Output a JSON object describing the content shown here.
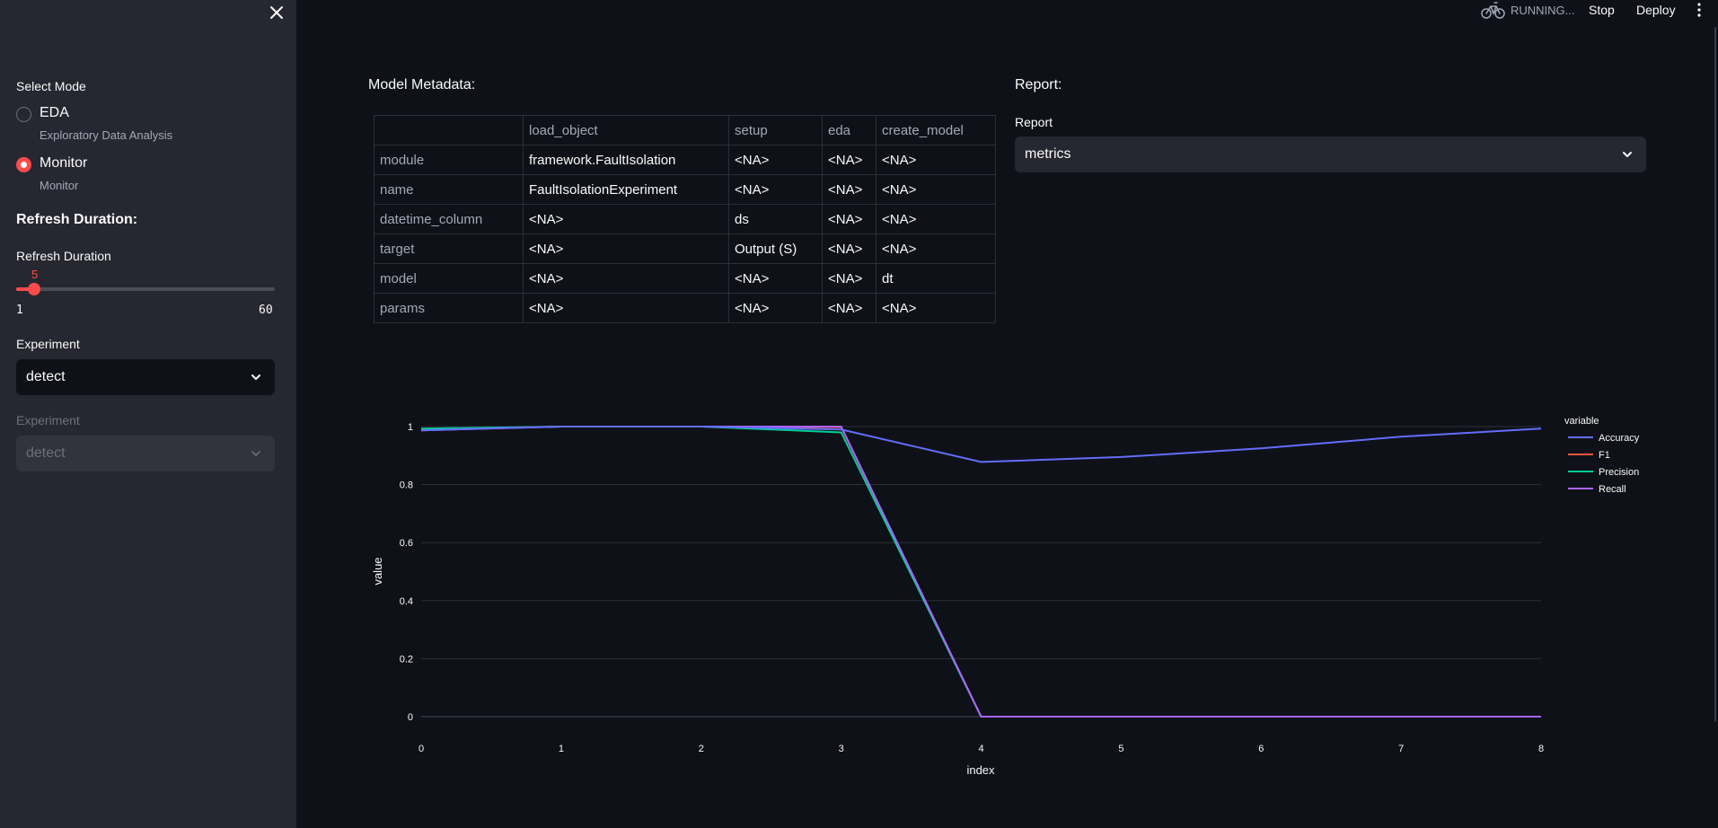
{
  "sidebar": {
    "select_mode_label": "Select Mode",
    "modes": [
      {
        "label": "EDA",
        "caption": "Exploratory Data Analysis",
        "checked": false
      },
      {
        "label": "Monitor",
        "caption": "Monitor",
        "checked": true
      }
    ],
    "refresh_heading": "Refresh Duration:",
    "refresh_label": "Refresh Duration",
    "slider": {
      "value": "5",
      "min": "1",
      "max": "60",
      "fraction": 0.068
    },
    "experiment_label": "Experiment",
    "experiment_value": "detect",
    "experiment_disabled_label": "Experiment",
    "experiment_disabled_value": "detect"
  },
  "header": {
    "status": "RUNNING...",
    "stop": "Stop",
    "deploy": "Deploy"
  },
  "main": {
    "metadata_title": "Model Metadata:",
    "report_title": "Report:",
    "report_label": "Report",
    "report_value": "metrics",
    "table": {
      "columns": [
        "",
        "load_object",
        "setup",
        "eda",
        "create_model"
      ],
      "rows": [
        [
          "module",
          "framework.FaultIsolation",
          "<NA>",
          "<NA>",
          "<NA>"
        ],
        [
          "name",
          "FaultIsolationExperiment",
          "<NA>",
          "<NA>",
          "<NA>"
        ],
        [
          "datetime_column",
          "<NA>",
          "ds",
          "<NA>",
          "<NA>"
        ],
        [
          "target",
          "<NA>",
          "Output (S)",
          "<NA>",
          "<NA>"
        ],
        [
          "model",
          "<NA>",
          "<NA>",
          "<NA>",
          "dt"
        ],
        [
          "params",
          "<NA>",
          "<NA>",
          "<NA>",
          "<NA>"
        ]
      ]
    }
  },
  "colors": {
    "accent": "#ff4b4b",
    "background": "#0e1117",
    "sidebar": "#262730"
  },
  "chart_data": {
    "type": "line",
    "xlabel": "index",
    "ylabel": "value",
    "legend_title": "variable",
    "x": [
      0,
      1,
      2,
      3,
      4,
      5,
      6,
      7,
      8
    ],
    "xlim": [
      0,
      8
    ],
    "ylim": [
      0,
      1
    ],
    "xticks": [
      "0",
      "1",
      "2",
      "3",
      "4",
      "5",
      "6",
      "7",
      "8"
    ],
    "yticks": [
      "0",
      "0.2",
      "0.4",
      "0.6",
      "0.8",
      "1"
    ],
    "grid": true,
    "legend_position": "top-right",
    "series": [
      {
        "name": "Accuracy",
        "color": "#636efa",
        "values": [
          0.987,
          1.0,
          1.0,
          0.99,
          0.878,
          0.895,
          0.925,
          0.965,
          0.993
        ]
      },
      {
        "name": "F1",
        "color": "#ef553b",
        "values": [
          0.99,
          1.0,
          1.0,
          0.998,
          0.0,
          0.0,
          0.0,
          0.0,
          0.0
        ]
      },
      {
        "name": "Precision",
        "color": "#00cc96",
        "values": [
          0.993,
          1.0,
          1.0,
          0.98,
          0.0,
          0.0,
          0.0,
          0.0,
          0.0
        ]
      },
      {
        "name": "Recall",
        "color": "#ab63fa",
        "values": [
          0.987,
          1.0,
          1.0,
          1.0,
          0.0,
          0.0,
          0.0,
          0.0,
          0.0
        ]
      }
    ]
  }
}
